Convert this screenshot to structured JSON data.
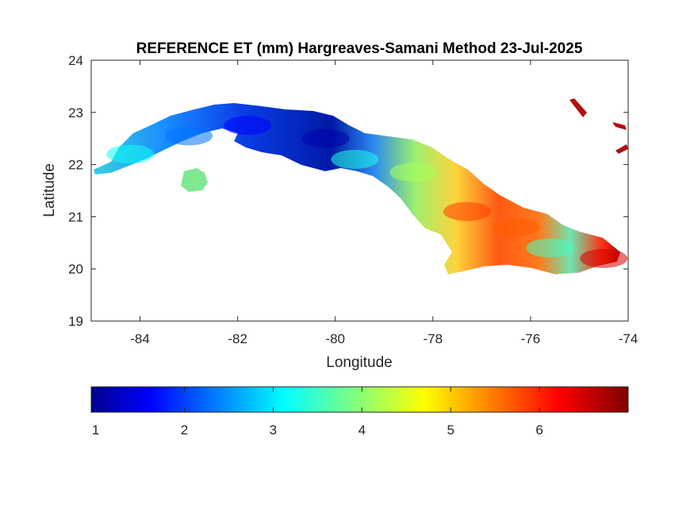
{
  "chart_data": {
    "type": "heatmap",
    "title": "REFERENCE ET (mm) Hargreaves-Samani Method  23-Jul-2025",
    "xlabel": "Longitude",
    "ylabel": "Latitude",
    "xlim": [
      -85,
      -74
    ],
    "ylim": [
      19,
      24
    ],
    "xticks": [
      -84,
      -82,
      -80,
      -78,
      -76,
      -74
    ],
    "yticks": [
      19,
      20,
      21,
      22,
      23,
      24
    ],
    "colormap": "jet",
    "colorbar": {
      "range": [
        0.95,
        7.0
      ],
      "ticks": [
        1,
        2,
        3,
        4,
        5,
        6
      ],
      "placement": "bottom"
    },
    "regions": [
      {
        "name": "",
        "lon": -84.2,
        "lat": 22.2,
        "value": 3.3
      },
      {
        "name": "",
        "lon": -83.0,
        "lat": 22.55,
        "value": 2.4
      },
      {
        "name": "",
        "lon": -81.8,
        "lat": 22.75,
        "value": 1.7
      },
      {
        "name": "",
        "lon": -80.2,
        "lat": 22.5,
        "value": 1.2
      },
      {
        "name": "",
        "lon": -79.6,
        "lat": 22.1,
        "value": 3.4
      },
      {
        "name": "",
        "lon": -78.4,
        "lat": 21.85,
        "value": 4.2
      },
      {
        "name": "",
        "lon": -77.3,
        "lat": 21.1,
        "value": 5.9
      },
      {
        "name": "",
        "lon": -76.3,
        "lat": 20.8,
        "value": 5.7
      },
      {
        "name": "",
        "lon": -75.6,
        "lat": 20.4,
        "value": 3.6
      },
      {
        "name": "",
        "lon": -74.5,
        "lat": 20.2,
        "value": 6.5
      }
    ]
  }
}
